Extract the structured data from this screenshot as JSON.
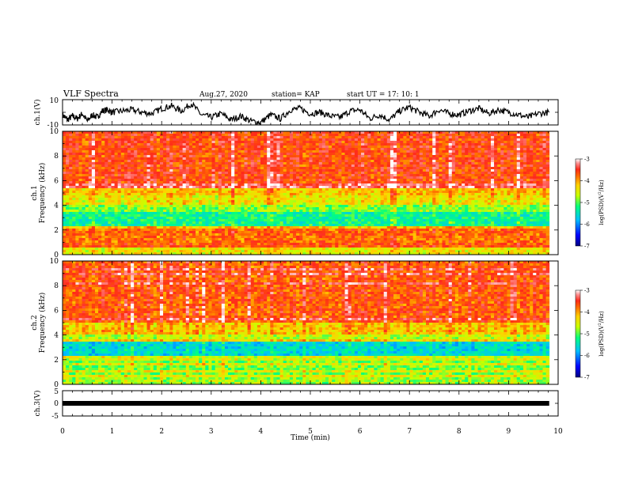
{
  "header": {
    "title": "VLF Spectra",
    "date": "Aug.27, 2020",
    "station": "station= KAP",
    "start": "start UT = 17: 10: 1"
  },
  "chart_data": [
    {
      "type": "line",
      "panel": "ch1-waveform",
      "ylabel": "ch.1(V)",
      "ylim": [
        -10,
        10
      ],
      "yticks": [
        "10",
        "-10"
      ],
      "xlim": [
        0,
        10
      ],
      "series": [
        {
          "x": [
            0,
            0.1,
            0.2,
            0.3,
            0.4,
            0.5,
            0.6,
            0.7,
            0.8,
            0.9,
            1.0,
            1.2,
            1.4,
            1.6,
            1.8,
            2.0,
            2.2,
            2.4,
            2.6,
            2.8,
            3.0,
            3.2,
            3.4,
            3.6,
            3.8,
            4.0,
            4.2,
            4.4,
            4.6,
            4.8,
            5.0,
            5.2,
            5.4,
            5.6,
            5.8,
            6.0,
            6.2,
            6.4,
            6.6,
            6.8,
            7.0,
            7.2,
            7.4,
            7.6,
            7.8,
            8.0,
            8.2,
            8.4,
            8.6,
            8.8,
            9.0,
            9.2,
            9.4,
            9.6,
            9.82
          ],
          "y": [
            -2,
            -6,
            -3,
            -5,
            -1,
            -7,
            -2,
            -4,
            1,
            2,
            0,
            1,
            2,
            0,
            -1,
            3,
            5,
            1,
            7,
            -2,
            -4,
            -1,
            -6,
            -3,
            -7,
            -8,
            -2,
            -5,
            2,
            3,
            -1,
            0,
            -3,
            -4,
            1,
            2,
            -5,
            -2,
            -6,
            1,
            4,
            0,
            -3,
            2,
            -1,
            -2,
            1,
            3,
            -1,
            2,
            0,
            -2,
            -4,
            -1,
            0
          ]
        }
      ]
    },
    {
      "type": "heatmap",
      "panel": "ch1-spectrogram",
      "ylabel": "ch.1\nFrequency (kHz)",
      "ylim": [
        0,
        10
      ],
      "yticks": [
        "0",
        "2",
        "4",
        "6",
        "8",
        "10"
      ],
      "xlim": [
        0,
        9.82
      ],
      "bands": [
        {
          "from": 0.0,
          "to": 0.5,
          "level": -4.5
        },
        {
          "from": 0.5,
          "to": 1.0,
          "level": -3.8
        },
        {
          "from": 1.0,
          "to": 1.8,
          "level": -3.9
        },
        {
          "from": 1.8,
          "to": 2.4,
          "level": -4.2
        },
        {
          "from": 2.4,
          "to": 3.4,
          "level": -5.3
        },
        {
          "from": 3.4,
          "to": 4.0,
          "level": -4.9
        },
        {
          "from": 4.0,
          "to": 4.8,
          "level": -4.5
        },
        {
          "from": 4.8,
          "to": 5.4,
          "level": -4.3
        },
        {
          "from": 5.4,
          "to": 10.0,
          "level": -3.7
        }
      ],
      "colorbar": {
        "label": "log(PSD)(V^2/Hz)",
        "range": [
          -7,
          -3
        ],
        "ticks": [
          "-3",
          "-4",
          "-5",
          "-6",
          "-7"
        ]
      }
    },
    {
      "type": "heatmap",
      "panel": "ch2-spectrogram",
      "ylabel": "ch.2\nFrequency (kHz)",
      "ylim": [
        0,
        10
      ],
      "yticks": [
        "0",
        "2",
        "4",
        "6",
        "8",
        "10"
      ],
      "xlim": [
        0,
        9.82
      ],
      "bands": [
        {
          "from": 0.0,
          "to": 0.6,
          "level": -4.8
        },
        {
          "from": 0.6,
          "to": 2.0,
          "level": -4.9
        },
        {
          "from": 2.0,
          "to": 2.4,
          "level": -4.6
        },
        {
          "from": 2.4,
          "to": 3.4,
          "level": -5.6
        },
        {
          "from": 3.4,
          "to": 4.0,
          "level": -4.7
        },
        {
          "from": 4.0,
          "to": 5.0,
          "level": -4.3
        },
        {
          "from": 5.0,
          "to": 10.0,
          "level": -3.8
        }
      ],
      "colorbar": {
        "label": "log(PSD)(V^2/Hz)",
        "range": [
          -7,
          -3
        ],
        "ticks": [
          "-3",
          "-4",
          "-5",
          "-6",
          "-7"
        ]
      }
    },
    {
      "type": "line",
      "panel": "ch3-waveform",
      "ylabel": "ch.3(V)",
      "ylim": [
        -5,
        5
      ],
      "yticks": [
        "5",
        "0",
        "-5"
      ],
      "xlim": [
        0,
        10
      ],
      "series": [
        {
          "x": [
            0,
            9.82
          ],
          "y": [
            0,
            0
          ]
        }
      ]
    }
  ],
  "xaxis": {
    "label": "Time (min)",
    "ticks": [
      "0",
      "1",
      "2",
      "3",
      "4",
      "5",
      "6",
      "7",
      "8",
      "9",
      "10"
    ]
  },
  "colors": {
    "colormap": [
      "#000080",
      "#0000ff",
      "#00c0ff",
      "#00ff80",
      "#a0ff00",
      "#ffff00",
      "#ff9900",
      "#ff2a1a",
      "#ff9090",
      "#ffffff"
    ]
  }
}
